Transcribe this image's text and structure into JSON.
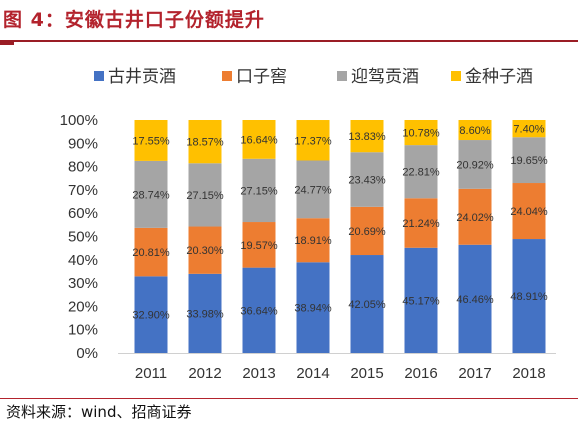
{
  "figure": {
    "title": "图 4：安徽古井口子份额提升",
    "source": "资料来源：wind、招商证券"
  },
  "chart_data": {
    "type": "bar",
    "stacked": true,
    "categories": [
      "2011",
      "2012",
      "2013",
      "2014",
      "2015",
      "2016",
      "2017",
      "2018"
    ],
    "series": [
      {
        "name": "古井贡酒",
        "color": "#4472c4",
        "values": [
          32.9,
          33.98,
          36.64,
          38.94,
          42.05,
          45.17,
          46.46,
          48.91
        ],
        "labels": [
          "32.90%",
          "33.98%",
          "36.64%",
          "38.94%",
          "42.05%",
          "45.17%",
          "46.46%",
          "48.91%"
        ]
      },
      {
        "name": "口子窖",
        "color": "#ed7d31",
        "values": [
          20.81,
          20.3,
          19.57,
          18.91,
          20.69,
          21.24,
          24.02,
          24.04
        ],
        "labels": [
          "20.81%",
          "20.30%",
          "19.57%",
          "18.91%",
          "20.69%",
          "21.24%",
          "24.02%",
          "24.04%"
        ]
      },
      {
        "name": "迎驾贡酒",
        "color": "#a5a5a5",
        "values": [
          28.74,
          27.15,
          27.15,
          24.77,
          23.43,
          22.81,
          20.92,
          19.65
        ],
        "labels": [
          "28.74%",
          "27.15%",
          "27.15%",
          "24.77%",
          "23.43%",
          "22.81%",
          "20.92%",
          "19.65%"
        ]
      },
      {
        "name": "金种子酒",
        "color": "#ffc000",
        "values": [
          17.55,
          18.57,
          16.64,
          17.37,
          13.83,
          10.78,
          8.6,
          7.4
        ],
        "labels": [
          "17.55%",
          "18.57%",
          "16.64%",
          "17.37%",
          "13.83%",
          "10.78%",
          "8.60%",
          "7.40%"
        ]
      }
    ],
    "ylim": [
      0,
      100
    ],
    "yticks": [
      "0%",
      "10%",
      "20%",
      "30%",
      "40%",
      "50%",
      "60%",
      "70%",
      "80%",
      "90%",
      "100%"
    ],
    "grid": false,
    "legend_position": "top"
  }
}
